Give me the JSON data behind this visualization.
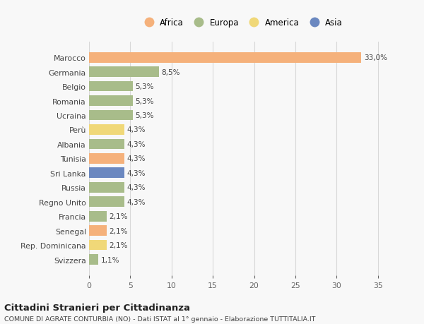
{
  "categories": [
    "Marocco",
    "Germania",
    "Belgio",
    "Romania",
    "Ucraina",
    "Perù",
    "Albania",
    "Tunisia",
    "Sri Lanka",
    "Russia",
    "Regno Unito",
    "Francia",
    "Senegal",
    "Rep. Dominicana",
    "Svizzera"
  ],
  "values": [
    33.0,
    8.5,
    5.3,
    5.3,
    5.3,
    4.3,
    4.3,
    4.3,
    4.3,
    4.3,
    4.3,
    2.1,
    2.1,
    2.1,
    1.1
  ],
  "labels": [
    "33,0%",
    "8,5%",
    "5,3%",
    "5,3%",
    "5,3%",
    "4,3%",
    "4,3%",
    "4,3%",
    "4,3%",
    "4,3%",
    "4,3%",
    "2,1%",
    "2,1%",
    "2,1%",
    "1,1%"
  ],
  "colors": [
    "#F5B17B",
    "#A8BC8A",
    "#A8BC8A",
    "#A8BC8A",
    "#A8BC8A",
    "#F0D878",
    "#A8BC8A",
    "#F5B17B",
    "#6B88C0",
    "#A8BC8A",
    "#A8BC8A",
    "#A8BC8A",
    "#F5B17B",
    "#F0D878",
    "#A8BC8A"
  ],
  "continent_colors": {
    "Africa": "#F5B17B",
    "Europa": "#A8BC8A",
    "America": "#F0D878",
    "Asia": "#6B88C0"
  },
  "legend_labels": [
    "Africa",
    "Europa",
    "America",
    "Asia"
  ],
  "title": "Cittadini Stranieri per Cittadinanza",
  "subtitle": "COMUNE DI AGRATE CONTURBIA (NO) - Dati ISTAT al 1° gennaio - Elaborazione TUTTITALIA.IT",
  "xlim": [
    0,
    37
  ],
  "xticks": [
    0,
    5,
    10,
    15,
    20,
    25,
    30,
    35
  ],
  "bg_color": "#f8f8f8",
  "grid_color": "#d8d8d8",
  "bar_height": 0.72
}
